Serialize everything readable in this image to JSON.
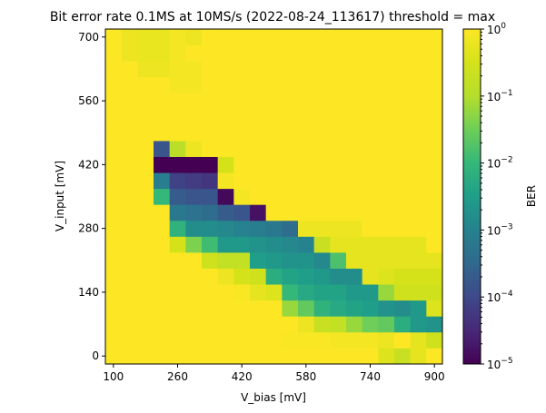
{
  "chart_data": {
    "type": "heatmap",
    "title": "Bit error rate 0.1MS at 10MS/s (2022-08-24_113617) threshold = max",
    "xlabel": "V_bias [mV]",
    "ylabel": "V_input [mV]",
    "x_ticks": [
      "100",
      "260",
      "420",
      "580",
      "740",
      "900"
    ],
    "y_ticks": [
      "0",
      "140",
      "280",
      "420",
      "560",
      "700"
    ],
    "colorbar": {
      "label": "BER",
      "scale": "log",
      "range": [
        1e-05,
        1
      ],
      "ticks": [
        {
          "base": "10",
          "exp": "0"
        },
        {
          "base": "10",
          "exp": "−1"
        },
        {
          "base": "10",
          "exp": "−2"
        },
        {
          "base": "10",
          "exp": "−3"
        },
        {
          "base": "10",
          "exp": "−4"
        },
        {
          "base": "10",
          "exp": "−5"
        }
      ],
      "colormap": "viridis"
    },
    "x_values": [
      100,
      140,
      180,
      220,
      260,
      300,
      340,
      380,
      420,
      460,
      500,
      540,
      580,
      620,
      660,
      700,
      740,
      780,
      820,
      860,
      900
    ],
    "y_values": [
      0,
      35,
      70,
      105,
      140,
      175,
      210,
      245,
      280,
      315,
      350,
      385,
      420,
      455,
      490,
      525,
      560,
      595,
      630,
      665,
      700
    ],
    "z_log10": [
      [
        0,
        0,
        0,
        0,
        0,
        0,
        0,
        0,
        0,
        0,
        0,
        0,
        0,
        0,
        0,
        0,
        0,
        -0.4,
        -0.7,
        -0.3,
        0
      ],
      [
        0,
        0,
        0,
        0,
        0,
        0,
        0,
        0,
        0,
        0,
        0,
        -0.05,
        -0.05,
        -0.05,
        -0.1,
        -0.1,
        -0.1,
        -0.2,
        0,
        -0.3,
        -0.6
      ],
      [
        0,
        0,
        0,
        0,
        0,
        0,
        0,
        0,
        0,
        0,
        0,
        0,
        -0.2,
        -0.7,
        -0.8,
        -1.2,
        -1.5,
        -1.6,
        -2.2,
        -2.6,
        -2.7
      ],
      [
        0,
        0,
        0,
        0,
        0,
        0,
        0,
        0,
        0,
        0,
        0,
        -1.2,
        -1.6,
        -2.1,
        -2.3,
        -2.4,
        -2.5,
        -2.7,
        -2.8,
        -2.6,
        -0.4
      ],
      [
        0,
        0,
        0,
        0,
        0,
        0,
        0,
        0,
        -0.05,
        -0.3,
        -0.4,
        -2.0,
        -2.3,
        -2.4,
        -2.4,
        -2.6,
        -2.6,
        -1.2,
        -0.6,
        -0.6,
        -0.6
      ],
      [
        0,
        0,
        0,
        0,
        0,
        0,
        0,
        -0.2,
        -0.5,
        -0.6,
        -2.2,
        -2.4,
        -2.5,
        -2.6,
        -2.8,
        -2.8,
        -0.3,
        -0.4,
        -0.5,
        -0.5,
        -0.5
      ],
      [
        0,
        0,
        0,
        0,
        0,
        0,
        -0.6,
        -0.8,
        -0.8,
        -2.5,
        -2.6,
        -2.7,
        -2.7,
        -2.9,
        -1.8,
        -0.3,
        -0.3,
        -0.3,
        -0.3,
        -0.3,
        -0.3
      ],
      [
        0,
        0,
        0,
        0,
        -0.5,
        -1.4,
        -1.9,
        -2.6,
        -2.6,
        -2.7,
        -2.8,
        -2.9,
        -3.0,
        -0.7,
        -0.3,
        -0.3,
        -0.3,
        -0.3,
        -0.3,
        -0.3,
        0
      ],
      [
        0,
        0,
        0,
        0,
        -2.1,
        -2.8,
        -2.8,
        -2.9,
        -3.0,
        -3.1,
        -3.2,
        -3.4,
        -0.2,
        -0.2,
        -0.2,
        -0.2,
        0,
        0,
        0,
        0,
        0
      ],
      [
        0,
        0,
        0,
        0,
        -3.2,
        -3.3,
        -3.4,
        -3.7,
        -3.8,
        -4.8,
        0,
        0,
        0,
        0,
        0,
        0,
        0,
        0,
        0,
        0,
        0
      ],
      [
        0,
        0,
        0,
        -2.0,
        -3.7,
        -3.8,
        -3.8,
        -4.9,
        -0.1,
        0,
        0,
        0,
        0,
        0,
        0,
        0,
        0,
        0,
        0,
        0,
        0
      ],
      [
        0,
        0,
        0,
        -3.1,
        -4.1,
        -4.2,
        -4.3,
        -0.1,
        0,
        0,
        0,
        0,
        0,
        0,
        0,
        0,
        0,
        0,
        0,
        0,
        0
      ],
      [
        0,
        0,
        0,
        -5.0,
        -5.0,
        -5.0,
        -5.0,
        -0.5,
        0,
        0,
        0,
        0,
        0,
        0,
        0,
        0,
        0,
        0,
        0,
        0,
        0
      ],
      [
        0,
        0,
        0,
        -3.8,
        -0.9,
        -0.2,
        0,
        0,
        0,
        0,
        0,
        0,
        0,
        0,
        0,
        0,
        0,
        0,
        0,
        0,
        0
      ],
      [
        0,
        0,
        0,
        0,
        0,
        0,
        0,
        0,
        0,
        0,
        0,
        0,
        0,
        0,
        0,
        0,
        0,
        0,
        0,
        0,
        0
      ],
      [
        0,
        0,
        0,
        0,
        0,
        0,
        0,
        0,
        0,
        0,
        0,
        0,
        0,
        0,
        0,
        0,
        0,
        0,
        0,
        0,
        0
      ],
      [
        0,
        0,
        0,
        0,
        0,
        0,
        0,
        0,
        0,
        0,
        0,
        0,
        0,
        0,
        0,
        0,
        0,
        0,
        0,
        0,
        0
      ],
      [
        0,
        0,
        0,
        0,
        -0.1,
        -0.1,
        0,
        0,
        0,
        0,
        0,
        0,
        0,
        0,
        0,
        0,
        0,
        0,
        0,
        0,
        0
      ],
      [
        0,
        0,
        -0.2,
        -0.2,
        -0.1,
        -0.1,
        0,
        0,
        0,
        0,
        0,
        0,
        0,
        0,
        0,
        0,
        0,
        0,
        0,
        0,
        0
      ],
      [
        0,
        -0.2,
        -0.25,
        -0.25,
        -0.1,
        0,
        0,
        0,
        0,
        0,
        0,
        0,
        0,
        0,
        0,
        0,
        0,
        0,
        0,
        0,
        0
      ],
      [
        0,
        -0.2,
        -0.25,
        -0.25,
        -0.1,
        -0.2,
        0,
        0,
        0,
        0,
        0,
        0,
        0,
        0,
        0,
        0,
        0,
        0,
        0,
        0,
        0
      ]
    ]
  }
}
